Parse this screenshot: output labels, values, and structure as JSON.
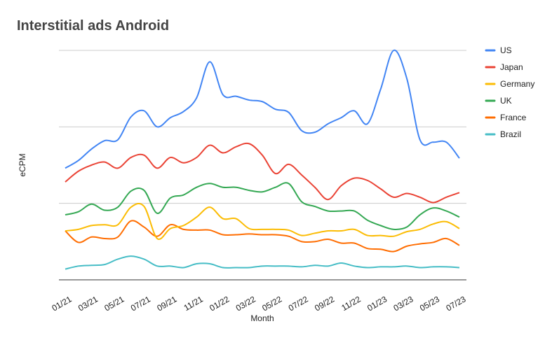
{
  "chart_data": {
    "type": "line",
    "title": "Interstitial ads Android",
    "xlabel": "Month",
    "ylabel": "eCPM",
    "ylim": [
      0,
      3
    ],
    "grid": true,
    "y_tick_labels_shown": false,
    "legend_position": "right",
    "x": [
      "01/21",
      "02/21",
      "03/21",
      "04/21",
      "05/21",
      "06/21",
      "07/21",
      "08/21",
      "09/21",
      "10/21",
      "11/21",
      "12/21",
      "01/22",
      "02/22",
      "03/22",
      "04/22",
      "05/22",
      "06/22",
      "07/22",
      "08/22",
      "09/22",
      "10/22",
      "11/22",
      "12/22",
      "01/23",
      "02/23",
      "03/23",
      "04/23",
      "05/23",
      "06/23",
      "07/23"
    ],
    "x_tick_labels": [
      "01/21",
      "03/21",
      "05/21",
      "07/21",
      "09/21",
      "11/21",
      "01/22",
      "03/22",
      "05/22",
      "07/22",
      "09/22",
      "11/22",
      "01/23",
      "03/23",
      "05/23",
      "07/23"
    ],
    "series": [
      {
        "name": "US",
        "color": "#4285f4",
        "values": [
          1.46,
          1.56,
          1.71,
          1.82,
          1.83,
          2.13,
          2.21,
          2.0,
          2.12,
          2.2,
          2.38,
          2.85,
          2.42,
          2.4,
          2.35,
          2.33,
          2.23,
          2.19,
          1.95,
          1.93,
          2.04,
          2.12,
          2.21,
          2.04,
          2.49,
          3.0,
          2.63,
          1.83,
          1.8,
          1.8,
          1.59
        ]
      },
      {
        "name": "Japan",
        "color": "#ea4335",
        "values": [
          1.28,
          1.42,
          1.5,
          1.54,
          1.46,
          1.6,
          1.63,
          1.46,
          1.6,
          1.53,
          1.6,
          1.76,
          1.66,
          1.74,
          1.78,
          1.63,
          1.39,
          1.51,
          1.37,
          1.21,
          1.05,
          1.23,
          1.33,
          1.3,
          1.19,
          1.08,
          1.13,
          1.08,
          1.01,
          1.08,
          1.14
        ]
      },
      {
        "name": "Germany",
        "color": "#fbbc04",
        "values": [
          0.64,
          0.66,
          0.71,
          0.72,
          0.72,
          0.95,
          0.96,
          0.54,
          0.67,
          0.71,
          0.82,
          0.95,
          0.8,
          0.8,
          0.67,
          0.66,
          0.66,
          0.65,
          0.58,
          0.61,
          0.64,
          0.64,
          0.66,
          0.58,
          0.58,
          0.57,
          0.63,
          0.66,
          0.73,
          0.76,
          0.67
        ]
      },
      {
        "name": "UK",
        "color": "#34a853",
        "values": [
          0.85,
          0.89,
          0.99,
          0.91,
          0.95,
          1.16,
          1.17,
          0.87,
          1.07,
          1.11,
          1.21,
          1.26,
          1.21,
          1.21,
          1.17,
          1.15,
          1.21,
          1.26,
          1.02,
          0.96,
          0.9,
          0.9,
          0.9,
          0.78,
          0.71,
          0.66,
          0.69,
          0.85,
          0.94,
          0.9,
          0.82
        ]
      },
      {
        "name": "France",
        "color": "#ff6d01",
        "values": [
          0.64,
          0.49,
          0.56,
          0.54,
          0.56,
          0.77,
          0.69,
          0.57,
          0.72,
          0.66,
          0.65,
          0.65,
          0.59,
          0.59,
          0.6,
          0.59,
          0.59,
          0.57,
          0.5,
          0.5,
          0.53,
          0.48,
          0.48,
          0.41,
          0.4,
          0.37,
          0.44,
          0.47,
          0.49,
          0.54,
          0.45
        ]
      },
      {
        "name": "Brazil",
        "color": "#46bdc6",
        "values": [
          0.14,
          0.18,
          0.19,
          0.2,
          0.27,
          0.31,
          0.27,
          0.18,
          0.18,
          0.16,
          0.21,
          0.21,
          0.16,
          0.16,
          0.16,
          0.18,
          0.18,
          0.18,
          0.17,
          0.19,
          0.18,
          0.22,
          0.18,
          0.16,
          0.17,
          0.17,
          0.18,
          0.16,
          0.17,
          0.17,
          0.16
        ]
      }
    ]
  }
}
